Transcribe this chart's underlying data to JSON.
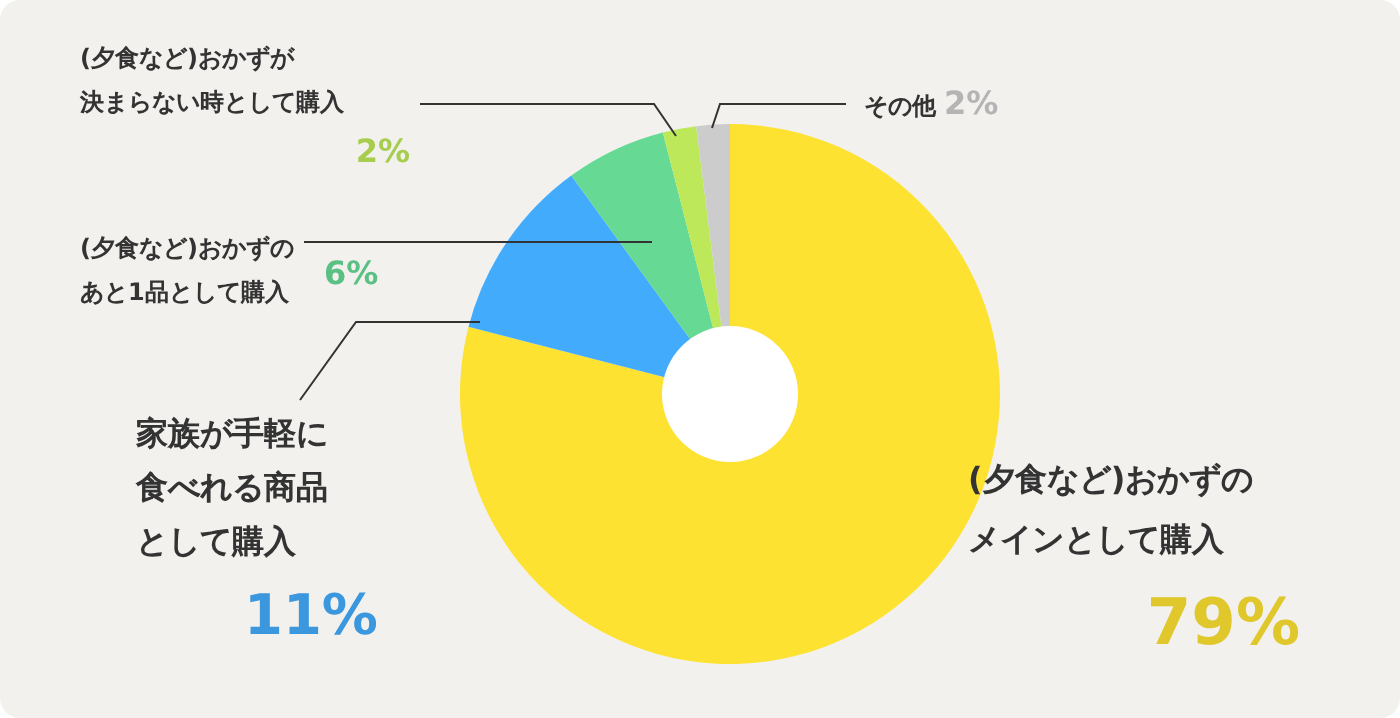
{
  "chart_data": {
    "type": "donut",
    "categories": [
      "(夕食など)おかずのメインとして購入",
      "家族が手軽に食べれる商品として購入",
      "(夕食など)おかずのあと1品として購入",
      "(夕食など)おかずが決まらない時として購入",
      "その他"
    ],
    "values": [
      79,
      11,
      6,
      2,
      2
    ],
    "colors": [
      "#fde232",
      "#43abfc",
      "#66d994",
      "#bde85a",
      "#cccccc"
    ],
    "value_labels": [
      "79%",
      "11%",
      "6%",
      "2%",
      "2%"
    ]
  }
}
